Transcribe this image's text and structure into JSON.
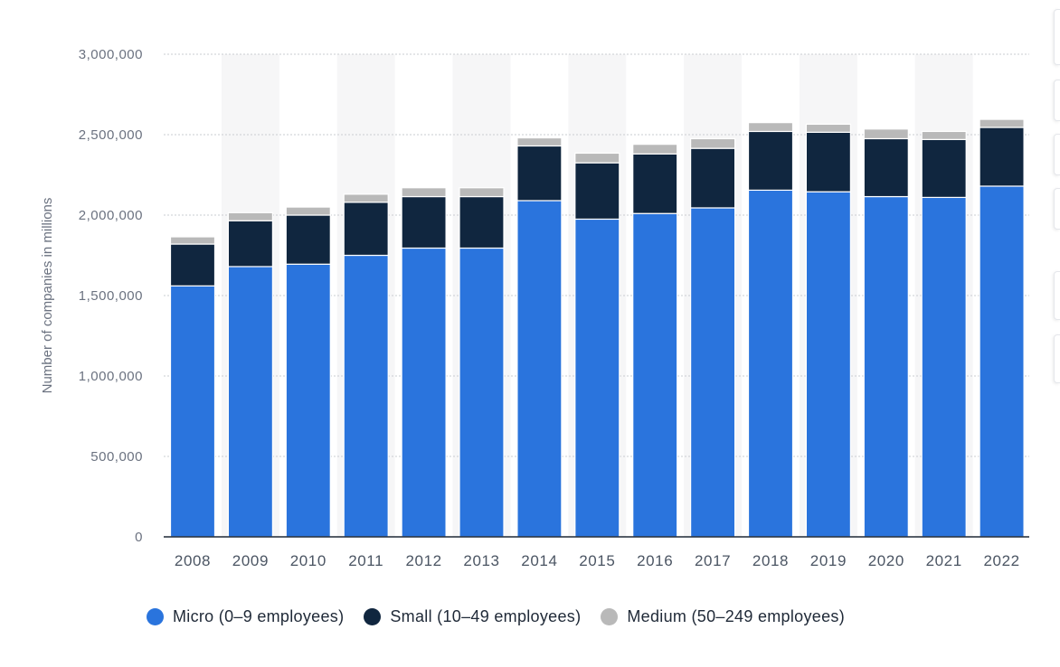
{
  "chart_data": {
    "type": "bar",
    "stacked": true,
    "categories": [
      "2008",
      "2009",
      "2010",
      "2011",
      "2012",
      "2013",
      "2014",
      "2015",
      "2016",
      "2017",
      "2018",
      "2019",
      "2020",
      "2021",
      "2022"
    ],
    "series": [
      {
        "name": "Micro (0-9 employees)",
        "color": "#2a74dd",
        "values": [
          1560000,
          1680000,
          1695000,
          1750000,
          1795000,
          1795000,
          2090000,
          1975000,
          2010000,
          2045000,
          2155000,
          2145000,
          2115000,
          2110000,
          2180000
        ]
      },
      {
        "name": "Small (10-49 employees)",
        "color": "#10263f",
        "values": [
          260000,
          285000,
          305000,
          330000,
          320000,
          320000,
          340000,
          350000,
          370000,
          370000,
          365000,
          370000,
          360000,
          360000,
          365000
        ]
      },
      {
        "name": "Medium (50-249 employees)",
        "color": "#b9b9b9",
        "values": [
          45000,
          50000,
          50000,
          50000,
          55000,
          55000,
          50000,
          60000,
          60000,
          60000,
          55000,
          50000,
          60000,
          50000,
          50000
        ]
      }
    ],
    "ylabel": "Number of companies in millions",
    "ylim": [
      0,
      3000000
    ],
    "yticks": [
      {
        "value": 0,
        "label": "0"
      },
      {
        "value": 500000,
        "label": "500,000"
      },
      {
        "value": 1000000,
        "label": "1,000,000"
      },
      {
        "value": 1500000,
        "label": "1,500,000"
      },
      {
        "value": 2000000,
        "label": "2,000,000"
      },
      {
        "value": 2500000,
        "label": "2,500,000"
      },
      {
        "value": 3000000,
        "label": "3,000,000"
      }
    ],
    "grid": true,
    "legend_position": "bottom-left"
  },
  "legend": {
    "items": [
      {
        "label": "Micro (0–9 employees)",
        "color": "#2a74dd"
      },
      {
        "label": "Small (10–49 employees)",
        "color": "#10263f"
      },
      {
        "label": "Medium (50–249 employees)",
        "color": "#b9b9b9"
      }
    ]
  }
}
